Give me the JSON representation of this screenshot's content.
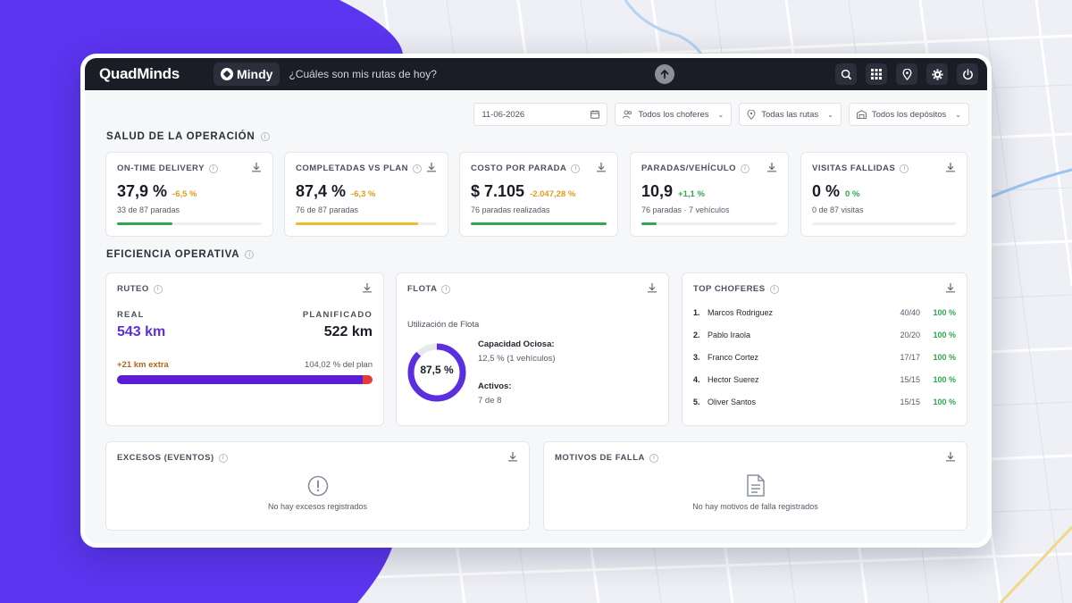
{
  "app": {
    "brand": "QuadMinds",
    "assistant": "Mindy",
    "prompt_placeholder": "¿Cuáles son mis rutas de hoy?"
  },
  "topbar_icons": [
    "search-icon",
    "grid-icon",
    "location-icon",
    "gear-icon",
    "power-icon"
  ],
  "filters": {
    "date": "11-06-2026",
    "drivers": "Todos los choferes",
    "routes": "Todas las rutas",
    "depots": "Todos los depósitos"
  },
  "sections": {
    "health": "SALUD DE LA OPERACIÓN",
    "efficiency": "EFICIENCIA OPERATIVA"
  },
  "kpis": [
    {
      "title": "ON-TIME DELIVERY",
      "value": "37,9 %",
      "delta": "-6,5 %",
      "delta_color": "#e69a1e",
      "sub": "33 de 87 paradas",
      "progress": 0.38,
      "bar_color": "#2fa84f"
    },
    {
      "title": "COMPLETADAS VS PLAN",
      "value": "87,4 %",
      "delta": "-6,3 %",
      "delta_color": "#e69a1e",
      "sub": "76 de 87 paradas",
      "progress": 0.87,
      "bar_color": "#f2b82e"
    },
    {
      "title": "COSTO POR PARADA",
      "value": "$ 7.105",
      "delta": "-2.047,28 %",
      "delta_color": "#e69a1e",
      "sub": "76 paradas realizadas",
      "progress": 1.0,
      "bar_color": "#2fa84f"
    },
    {
      "title": "PARADAS/VEHÍCULO",
      "value": "10,9",
      "delta": "+1,1 %",
      "delta_color": "#2fa84f",
      "sub": "76 paradas · 7 vehículos",
      "progress": 0.11,
      "bar_color": "#2fa84f"
    },
    {
      "title": "VISITAS FALLIDAS",
      "value": "0 %",
      "delta": "0 %",
      "delta_color": "#2fa84f",
      "sub": "0 de 87 visitas",
      "progress": 0,
      "bar_color": "#2fa84f"
    }
  ],
  "ruteo": {
    "title": "RUTEO",
    "real_label": "REAL",
    "real_value": "543 km",
    "plan_label": "PLANIFICADO",
    "plan_value": "522 km",
    "extra": "+21 km extra",
    "pct_plan": "104,02 % del plan",
    "plan_fraction": 0.961
  },
  "flota": {
    "title": "FLOTA",
    "subtitle": "Utilización de Flota",
    "gauge_value": "87,5 %",
    "gauge_fraction": 0.875,
    "idle_label": "Capacidad Ociosa:",
    "idle_value": "12,5 % (1 vehículos)",
    "active_label": "Activos:",
    "active_value": "7 de 8"
  },
  "top_choferes": {
    "title": "TOP CHOFERES",
    "rows": [
      {
        "rank": "1.",
        "name": "Marcos Rodriguez",
        "score": "40/40",
        "pct": "100 %"
      },
      {
        "rank": "2.",
        "name": "Pablo Iraola",
        "score": "20/20",
        "pct": "100 %"
      },
      {
        "rank": "3.",
        "name": "Franco Cortez",
        "score": "17/17",
        "pct": "100 %"
      },
      {
        "rank": "4.",
        "name": "Hector Suerez",
        "score": "15/15",
        "pct": "100 %"
      },
      {
        "rank": "5.",
        "name": "Oliver Santos",
        "score": "15/15",
        "pct": "100 %"
      }
    ]
  },
  "excesos": {
    "title": "EXCESOS (EVENTOS)",
    "empty": "No hay excesos registrados"
  },
  "motivos": {
    "title": "MOTIVOS DE FALLA",
    "empty": "No hay motivos de falla registrados"
  },
  "colors": {
    "purple": "#5b2fe0",
    "red": "#e23b3b",
    "green": "#2fa84f",
    "amber": "#e69a1e"
  }
}
